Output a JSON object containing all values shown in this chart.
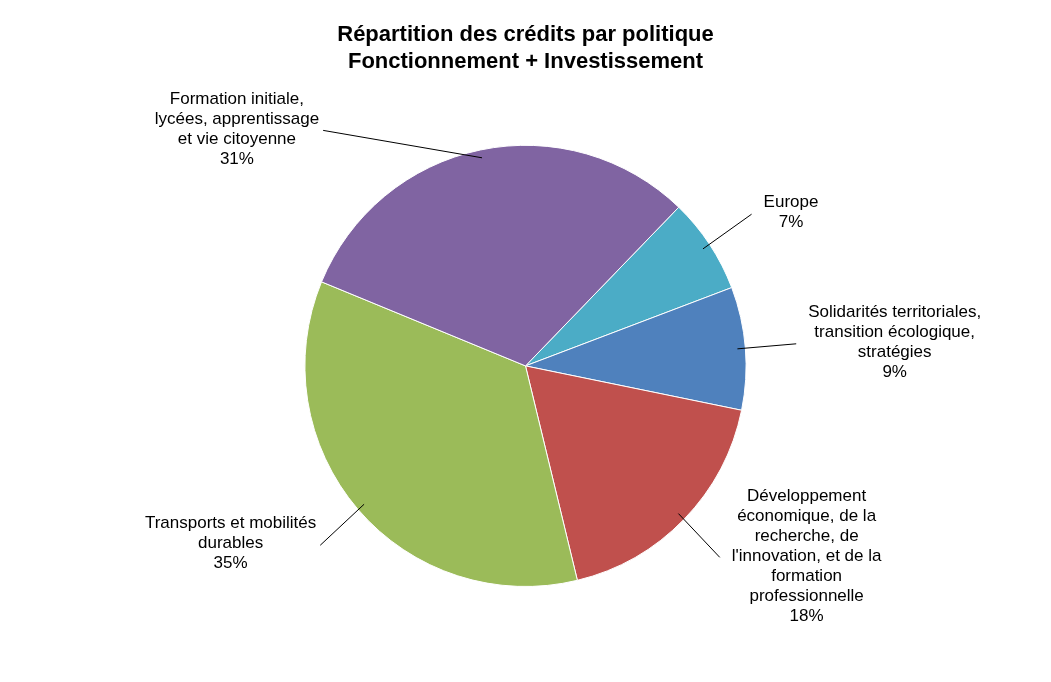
{
  "chart_data": {
    "type": "pie",
    "title": "Répartition des crédits par politique",
    "subtitle": "Fonctionnement + Investissement",
    "categories": [
      "Europe",
      "Solidarités territoriales, transition écologique, stratégies",
      "Développement économique, de la recherche, de l'innovation, et de la formation professionnelle",
      "Transports et mobilités durables",
      "Formation initiale, lycées, apprentissage et vie citoyenne"
    ],
    "values": [
      7,
      9,
      18,
      35,
      31
    ],
    "value_labels": [
      "7%",
      "9%",
      "18%",
      "35%",
      "31%"
    ],
    "colors": [
      "#4bacc6",
      "#4f81bd",
      "#c0504d",
      "#9bbb59",
      "#8064a2"
    ],
    "legend": false
  }
}
